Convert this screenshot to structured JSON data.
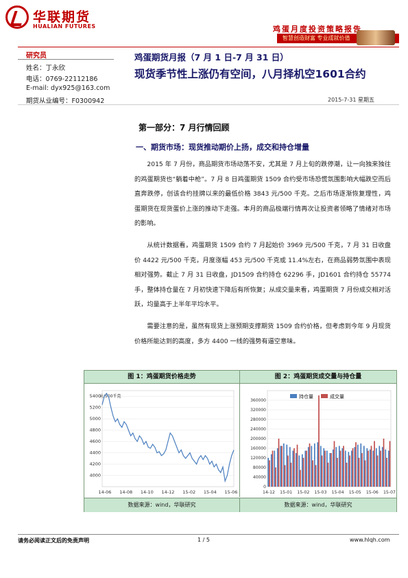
{
  "header": {
    "brand_cn": "华联期货",
    "brand_en": "HUALIAN FUTURES",
    "right_title": "鸡蛋月度投资策略报告",
    "slogan": "智慧创造财富  专业成就价值"
  },
  "analyst": {
    "label": "研究员",
    "name": "姓名：丁永欣",
    "phone": "电话：0769-22112186",
    "email": "E-mail: dyx925@163.com",
    "license": "期货从业编号：F0300942"
  },
  "report": {
    "title": "鸡蛋期货月报（7 月 1 日-7 月 31 日）",
    "subtitle": "现货季节性上涨仍有空间，八月择机空1601合约",
    "date": "2015-7-31   星期五"
  },
  "section": {
    "title": "第一部分：7 月行情回顾",
    "subsection": "一、期货市场：现货推动期价上扬，成交和持仓增量"
  },
  "paragraphs": {
    "p1": "2015 年 7 月份，商品期货市场动荡不安，尤其是 7 月上旬的跌停潮，让一向独来独往的鸡蛋期货也“躺着中枪”。7 月 8 日鸡蛋期货 1509 合约受市场恐慌氛围影响大幅跌空而后直奔跌停，创该合约挂牌以来的最低价格  3843  元/500 千克。之后市场逐渐恢复理性，鸡蛋期货在现货蛋价上涨的推动下走强。本月的商品极端行情再次让投资者领略了情绪对市场的影响。",
    "p2": "从统计数据看，鸡蛋期货 1509 合约 7 月起始价 3969 元/500 千克，7 月 31 日收盘价 4422 元/500 千克，月度涨幅 453 元/500 千克或 11.4%左右，在商品弱势氛围中表现相对强势。截止 7 月 31 日收盘，JD1509 合约持仓 62296 手，JD1601 合约持仓 55774 手，整体持仓量在 7 月初快速下降后有所恢复；从成交量来看，鸡蛋期货 7 月份成交相对活跃，均量高于上半年平均水平。",
    "p3": "需要注意的是，虽然有现货上涨预期支撑期货 1509 合约价格，但考虑到今年 9 月现货价格所能达到的高度，多方 4400 一线的强势有逼空意味。"
  },
  "figures": {
    "fig1_title": "图 1：鸡蛋期货价格走势",
    "fig2_title": "图 2：鸡蛋期货成交量与持仓量",
    "fig1_source": "数据来源：wind，华联研究",
    "fig2_source": "数据来源：wind，华联研究"
  },
  "chart_data": [
    {
      "type": "line",
      "title": "图 1：鸡蛋期货价格走势",
      "ylabel": "元/500千克",
      "ylim": [
        3800,
        5500
      ],
      "yticks": [
        4000,
        4200,
        4400,
        4600,
        4800,
        5000,
        5200,
        5400
      ],
      "xticks": [
        "14-06",
        "14-08",
        "14-10",
        "14-12",
        "15-02",
        "15-04",
        "15-06"
      ],
      "x": [
        0,
        2,
        4,
        6,
        8,
        10,
        12,
        14,
        16,
        18,
        20,
        22,
        24,
        26,
        28,
        30,
        32,
        34,
        36,
        38,
        40,
        42,
        44,
        46,
        48,
        50,
        52,
        54,
        56,
        58,
        60,
        62,
        64,
        66,
        68,
        70,
        72,
        74,
        76,
        78,
        80,
        82,
        84,
        86,
        88,
        90,
        92,
        94,
        96,
        98,
        100,
        102,
        104,
        106,
        108,
        110,
        112,
        114,
        116,
        118,
        120
      ],
      "series": [
        {
          "values": [
            5250,
            5400,
            5450,
            5380,
            5200,
            5050,
            4950,
            5000,
            4900,
            4850,
            4950,
            4900,
            4800,
            4700,
            4750,
            4650,
            4600,
            4700,
            4650,
            4550,
            4600,
            4500,
            4480,
            4550,
            4500,
            4400,
            4420,
            4350,
            4380,
            4450,
            4600,
            4750,
            4700,
            4600,
            4500,
            4400,
            4450,
            4350,
            4300,
            4350,
            4400,
            4300,
            4250,
            4200,
            4300,
            4350,
            4280,
            4350,
            4300,
            4200,
            4250,
            4150,
            4200,
            4100,
            4050,
            4150,
            3900,
            4000,
            4200,
            4350,
            4450
          ]
        }
      ]
    },
    {
      "type": "bar",
      "title": "图 2：鸡蛋期货成交量与持仓量",
      "ylim": [
        0,
        400000
      ],
      "yticks": [
        0,
        40000,
        80000,
        120000,
        160000,
        200000,
        240000,
        280000,
        320000,
        360000
      ],
      "xticks": [
        "14-12",
        "15-01",
        "15-02",
        "15-03",
        "15-04",
        "15-05",
        "15-06",
        "15-07"
      ],
      "series": [
        {
          "name": "持仓量",
          "color": "#4a7fc0",
          "values": [
            120000,
            135000,
            150000,
            160000,
            170000,
            180000,
            175000,
            165000,
            150000,
            140000,
            130000,
            135000,
            150000,
            165000,
            170000,
            180000,
            185000,
            170000,
            160000,
            150000,
            140000,
            155000,
            165000,
            170000,
            160000,
            150000,
            145000,
            150000,
            165000,
            175000,
            180000,
            170000,
            160000,
            155000,
            150000,
            160000,
            170000,
            165000,
            155000,
            150000
          ]
        },
        {
          "name": "成交量",
          "color": "#c0504d",
          "values": [
            110000,
            150000,
            80000,
            200000,
            170000,
            90000,
            130000,
            100000,
            160000,
            175000,
            70000,
            120000,
            150000,
            180000,
            110000,
            90000,
            380000,
            130000,
            150000,
            100000,
            140000,
            190000,
            120000,
            150000,
            170000,
            100000,
            130000,
            160000,
            185000,
            120000,
            140000,
            110000,
            150000,
            170000,
            190000,
            130000,
            150000,
            200000,
            120000,
            190000
          ]
        }
      ]
    }
  ],
  "footer": {
    "disclaimer": "请务必阅读正文后的免责声明",
    "page": "1 / 5",
    "url": "www.hlqh.com"
  }
}
